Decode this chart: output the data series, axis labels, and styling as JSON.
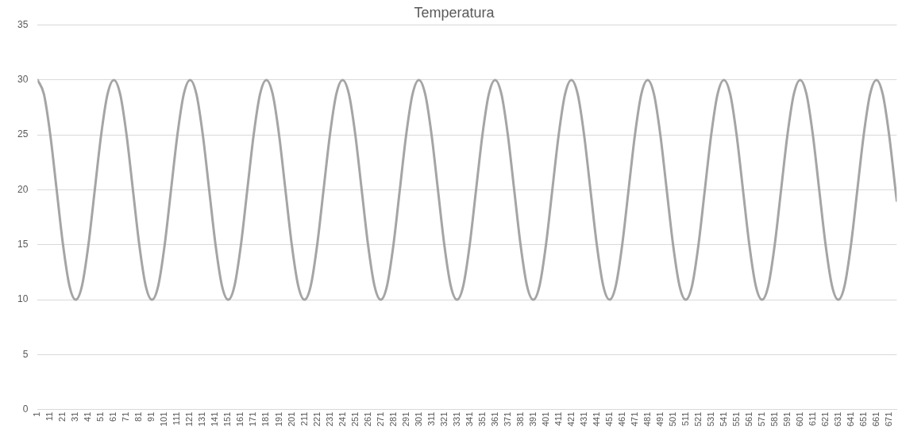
{
  "chart_data": {
    "type": "line",
    "title": "Temperatura",
    "x": [
      1,
      6,
      11,
      16,
      21,
      26,
      31,
      36,
      41,
      46,
      51,
      56,
      61,
      66,
      71,
      76,
      81,
      86,
      91,
      96,
      101,
      106,
      111,
      116,
      121,
      126,
      131,
      136,
      141,
      146,
      151,
      156,
      161,
      166,
      171,
      176,
      181,
      186,
      191,
      196,
      201,
      206,
      211,
      216,
      221,
      226,
      231,
      236,
      241,
      246,
      251,
      256,
      261,
      266,
      271,
      276,
      281,
      286,
      291,
      296,
      301,
      306,
      311,
      316,
      321,
      326,
      331,
      336,
      341,
      346,
      351,
      356,
      361,
      366,
      371,
      376,
      381,
      386,
      391,
      396,
      401,
      406,
      411,
      416,
      421,
      426,
      431,
      436,
      441,
      446,
      451,
      456,
      461,
      466,
      471,
      476,
      481,
      486,
      491,
      496,
      501,
      506,
      511,
      516,
      521,
      526,
      531,
      536,
      541,
      546,
      551,
      556,
      561,
      566,
      571,
      576,
      581,
      586,
      591,
      596,
      601,
      606,
      611,
      616,
      621,
      626,
      631,
      636,
      641,
      646,
      651,
      656,
      661,
      666,
      671,
      676,
      677
    ],
    "series": [
      {
        "color": "#a5a5a5",
        "values": [
          30,
          28.7,
          25,
          20,
          15,
          11.3,
          10,
          11.3,
          15,
          20,
          25,
          28.7,
          30,
          28.7,
          25,
          20,
          15,
          11.3,
          10,
          11.3,
          15,
          20,
          25,
          28.7,
          30,
          28.7,
          25,
          20,
          15,
          11.3,
          10,
          11.3,
          15,
          20,
          25,
          28.7,
          30,
          28.7,
          25,
          20,
          15,
          11.3,
          10,
          11.3,
          15,
          20,
          25,
          28.7,
          30,
          28.7,
          25,
          20,
          15,
          11.3,
          10,
          11.3,
          15,
          20,
          25,
          28.7,
          30,
          28.7,
          25,
          20,
          15,
          11.3,
          10,
          11.3,
          15,
          20,
          25,
          28.7,
          30,
          28.7,
          25,
          20,
          15,
          11.3,
          10,
          11.3,
          15,
          20,
          25,
          28.7,
          30,
          28.7,
          25,
          20,
          15,
          11.3,
          10,
          11.3,
          15,
          20,
          25,
          28.7,
          30,
          28.7,
          25,
          20,
          15,
          11.3,
          10,
          11.3,
          15,
          20,
          25,
          28.7,
          30,
          28.7,
          25,
          20,
          15,
          11.3,
          10,
          11.3,
          15,
          20,
          25,
          28.7,
          30,
          28.7,
          25,
          20,
          15,
          11.3,
          10,
          11.3,
          15,
          20,
          25,
          28.7,
          30,
          28.7,
          25,
          20,
          19
        ]
      }
    ],
    "xlim": [
      1,
      677
    ],
    "xticks": [
      1,
      11,
      21,
      31,
      41,
      51,
      61,
      71,
      81,
      91,
      101,
      111,
      121,
      131,
      141,
      151,
      161,
      171,
      181,
      191,
      201,
      211,
      221,
      231,
      241,
      251,
      261,
      271,
      281,
      291,
      301,
      311,
      321,
      331,
      341,
      351,
      361,
      371,
      381,
      391,
      401,
      411,
      421,
      431,
      441,
      451,
      461,
      471,
      481,
      491,
      501,
      511,
      521,
      531,
      541,
      551,
      561,
      571,
      581,
      591,
      601,
      611,
      621,
      631,
      641,
      651,
      661,
      671
    ],
    "ylim": [
      0,
      35
    ],
    "yticks": [
      0,
      5,
      10,
      15,
      20,
      25,
      30,
      35
    ],
    "grid": "y",
    "legend": false,
    "marker": "none",
    "line_style": "solid"
  }
}
